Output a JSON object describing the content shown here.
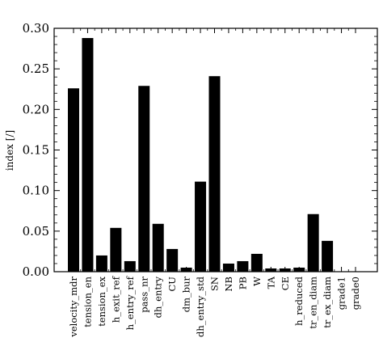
{
  "chart_data": {
    "type": "bar",
    "ylabel": "index [/]",
    "xlabel": "",
    "title": "",
    "ylim": [
      0,
      0.3
    ],
    "yticks": [
      0.0,
      0.05,
      0.1,
      0.15,
      0.2,
      0.25,
      0.3
    ],
    "ytick_labels": [
      "0.00",
      "0.05",
      "0.10",
      "0.15",
      "0.20",
      "0.25",
      "0.30"
    ],
    "bar_color": "#000000",
    "categories": [
      "velocity_mdr",
      "tension_en",
      "tension_ex",
      "h_exit_ref",
      "h_entry_ref",
      "pass_nr",
      "dh_entry",
      "CU",
      "dm_bur",
      "dh_entry_std",
      "SN",
      "NB",
      "PB",
      "W",
      "TA",
      "CE",
      "h_reduced",
      "tr_en_diam",
      "tr_ex_diam",
      "grade1",
      "grade0"
    ],
    "values": [
      0.226,
      0.288,
      0.02,
      0.054,
      0.013,
      0.229,
      0.059,
      0.028,
      0.005,
      0.111,
      0.241,
      0.01,
      0.013,
      0.022,
      0.004,
      0.004,
      0.005,
      0.071,
      0.038,
      0.0,
      0.0
    ]
  }
}
